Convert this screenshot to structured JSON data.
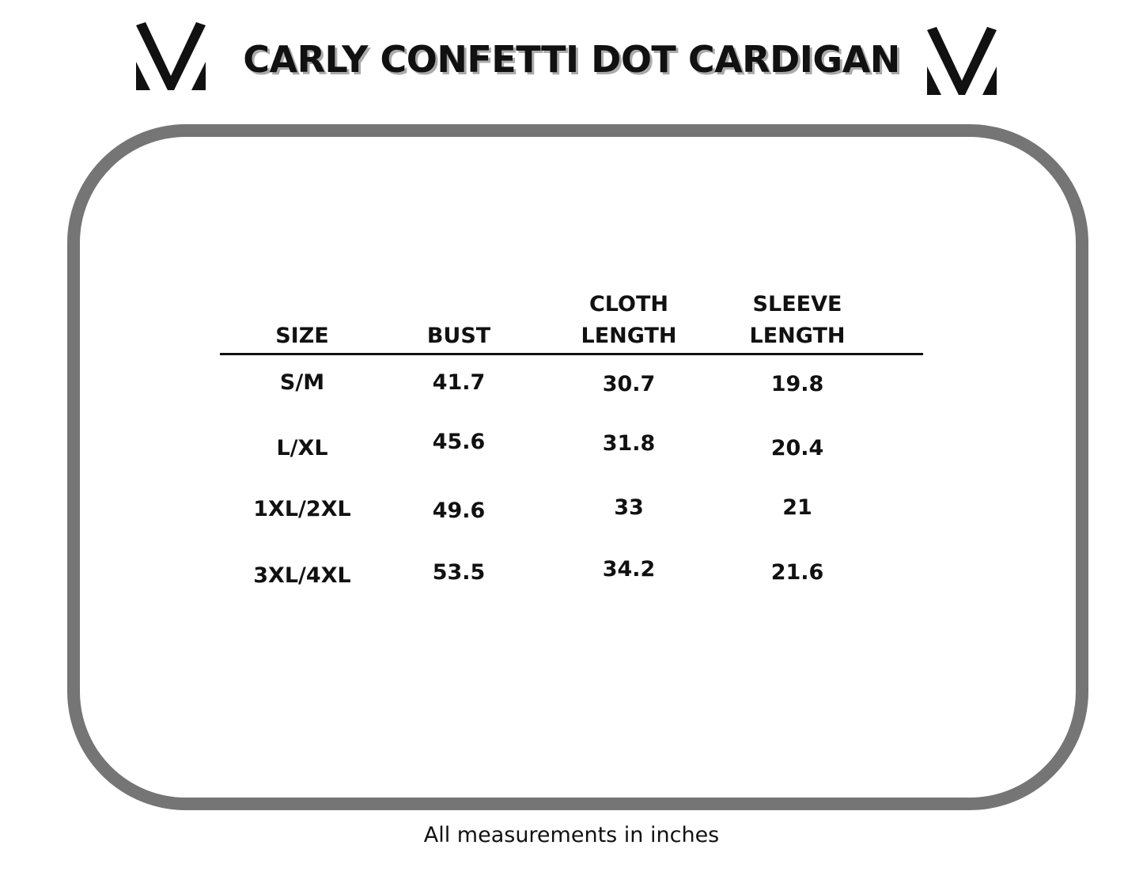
{
  "header": {
    "title": "CARLY CONFETTI DOT CARDIGAN"
  },
  "table": {
    "columns": [
      "SIZE",
      "BUST",
      "CLOTH LENGTH",
      "SLEEVE LENGTH"
    ],
    "rows": [
      [
        "S/M",
        "41.7",
        "30.7",
        "19.8"
      ],
      [
        "L/XL",
        "45.6",
        "31.8",
        "20.4"
      ],
      [
        "1XL/2XL",
        "49.6",
        "33",
        "21"
      ],
      [
        "3XL/4XL",
        "53.5",
        "34.2",
        "21.6"
      ]
    ]
  },
  "footer": {
    "note": "All measurements in inches"
  }
}
